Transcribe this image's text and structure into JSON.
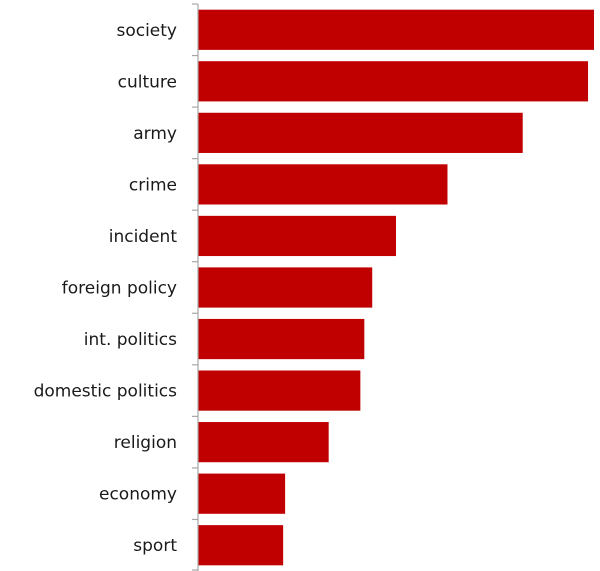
{
  "chart_data": {
    "type": "bar",
    "orientation": "horizontal",
    "title": "",
    "xlabel": "",
    "ylabel": "",
    "categories": [
      "society",
      "culture",
      "army",
      "crime",
      "incident",
      "foreign policy",
      "int. politics",
      "domestic politics",
      "religion",
      "economy",
      "sport"
    ],
    "values": [
      100,
      98.5,
      82,
      63,
      50,
      44,
      42,
      41,
      33,
      22,
      21.5
    ],
    "xlim": [
      0,
      100
    ],
    "value_axis_visible": false,
    "grid": false,
    "legend": "none",
    "bar_color": "#c00000"
  }
}
